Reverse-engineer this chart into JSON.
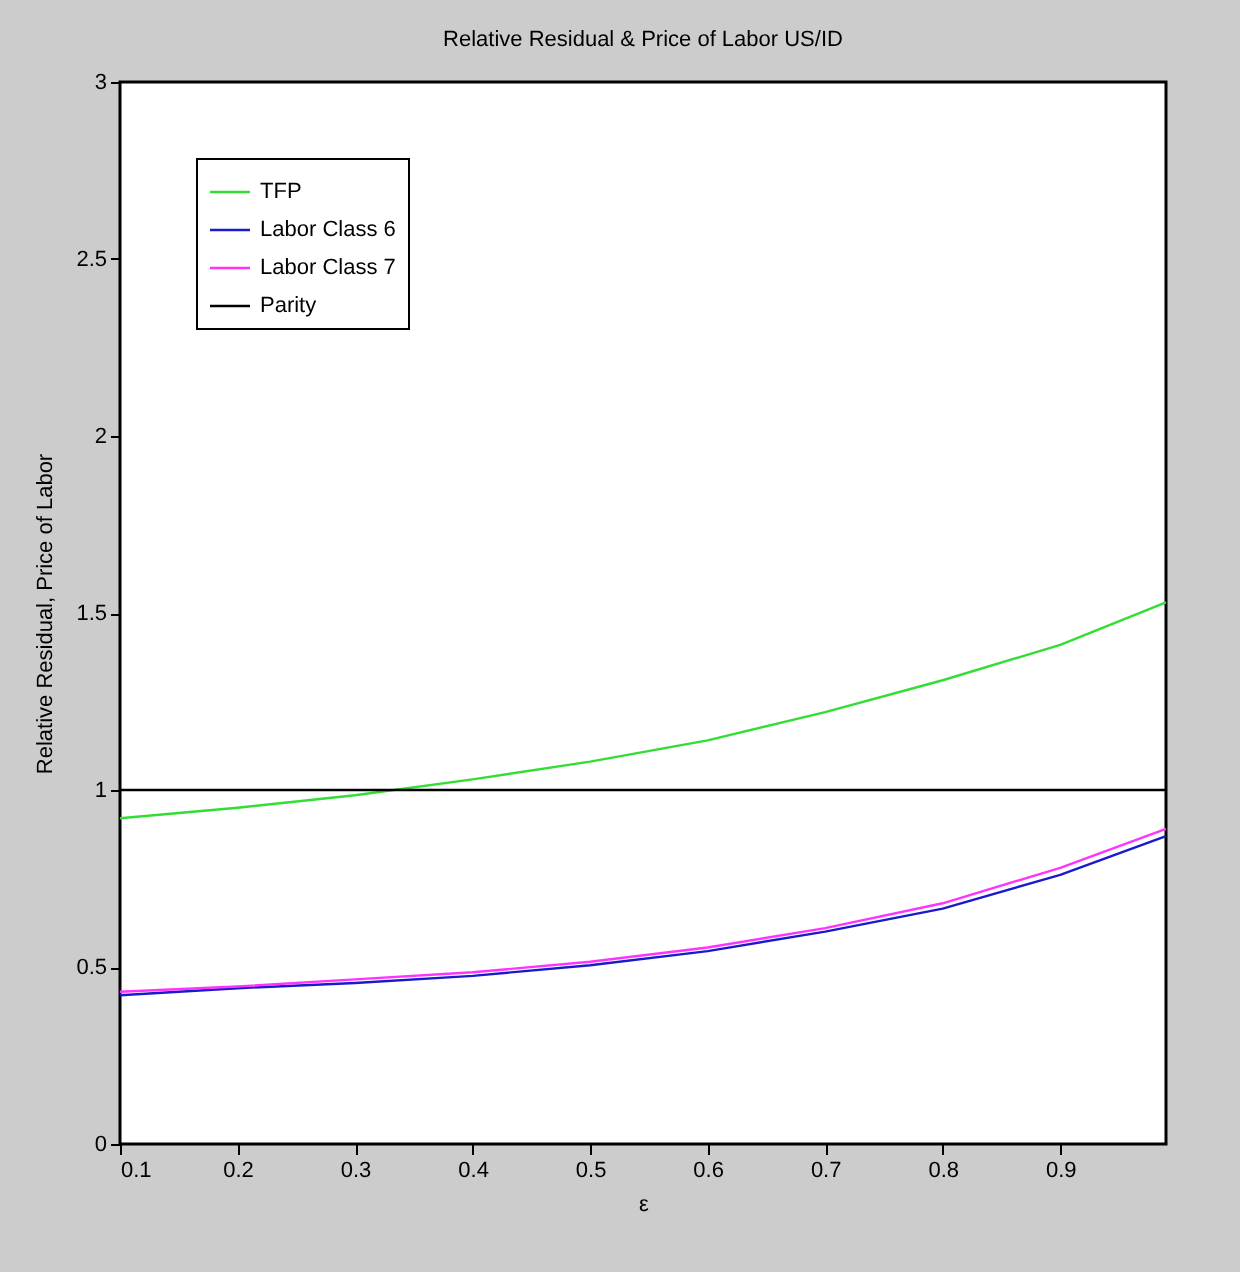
{
  "chart_data": {
    "type": "line",
    "title": "Relative Residual & Price of Labor US/ID",
    "xlabel": "ε",
    "ylabel": "Relative Residual, Price of Labor",
    "xlim": [
      0.1,
      0.99
    ],
    "ylim": [
      0,
      3
    ],
    "xticks": [
      0.1,
      0.2,
      0.3,
      0.4,
      0.5,
      0.6,
      0.7,
      0.8,
      0.9
    ],
    "yticks": [
      0,
      0.5,
      1,
      1.5,
      2,
      2.5,
      3
    ],
    "grid": false,
    "legend": "top left",
    "line_style": "solid",
    "marker": "none",
    "series": [
      {
        "name": "TFP",
        "color": "#33dd33",
        "x": [
          0.1,
          0.2,
          0.3,
          0.4,
          0.5,
          0.6,
          0.7,
          0.8,
          0.9,
          0.99
        ],
        "values": [
          0.92,
          0.95,
          0.985,
          1.03,
          1.08,
          1.14,
          1.22,
          1.31,
          1.41,
          1.53
        ]
      },
      {
        "name": "Labor Class 6",
        "color": "#1a1acc",
        "x": [
          0.1,
          0.2,
          0.3,
          0.4,
          0.5,
          0.6,
          0.7,
          0.8,
          0.9,
          0.99
        ],
        "values": [
          0.42,
          0.44,
          0.455,
          0.475,
          0.505,
          0.545,
          0.6,
          0.665,
          0.76,
          0.87
        ]
      },
      {
        "name": "Labor Class 7",
        "color": "#ff33ff",
        "x": [
          0.1,
          0.2,
          0.3,
          0.4,
          0.5,
          0.6,
          0.7,
          0.8,
          0.9,
          0.99
        ],
        "values": [
          0.43,
          0.445,
          0.465,
          0.485,
          0.515,
          0.555,
          0.61,
          0.68,
          0.78,
          0.89
        ]
      },
      {
        "name": "Parity",
        "color": "#000000",
        "x": [
          0.1,
          0.99
        ],
        "values": [
          1,
          1
        ]
      }
    ]
  }
}
